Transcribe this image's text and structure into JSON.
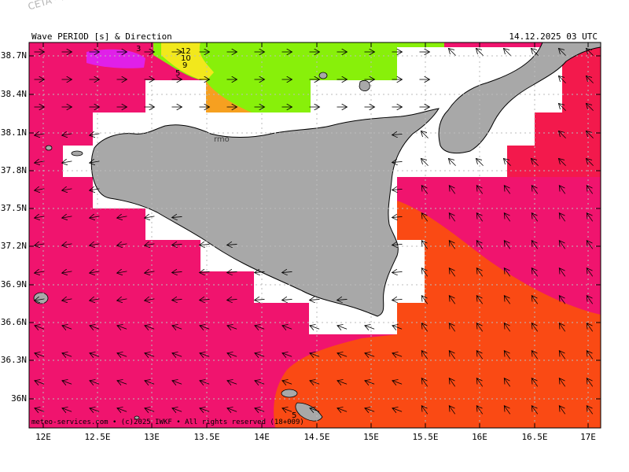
{
  "watermark": "CETA - ...",
  "header": {
    "left": "Wave PERIOD [s] & Direction",
    "right": "14.12.2025 03 UTC"
  },
  "credit": "meteo-services.com • (c)2025 IWKF • All rights reserved (18+009)",
  "axes": {
    "y_ticks": [
      "38.7N",
      "38.4N",
      "38.1N",
      "37.8N",
      "37.5N",
      "37.2N",
      "36.9N",
      "36.6N",
      "36.3N",
      "36N"
    ],
    "x_ticks": [
      "12E",
      "12.5E",
      "13E",
      "13.5E",
      "14E",
      "14.5E",
      "15E",
      "15.5E",
      "16E",
      "16.5E",
      "17E"
    ]
  },
  "contour_labels": [
    "3",
    "12",
    "10",
    "9",
    "5",
    "5"
  ],
  "city_fragment": "rmo",
  "colors": {
    "sea_magenta": "#f0146e",
    "sea_red": "#f3194c",
    "sea_orange": "#fa4a14",
    "purple": "#e020e8",
    "green": "#88f00a",
    "land": "#a8a8a8",
    "nodata": "#ffffff"
  }
}
